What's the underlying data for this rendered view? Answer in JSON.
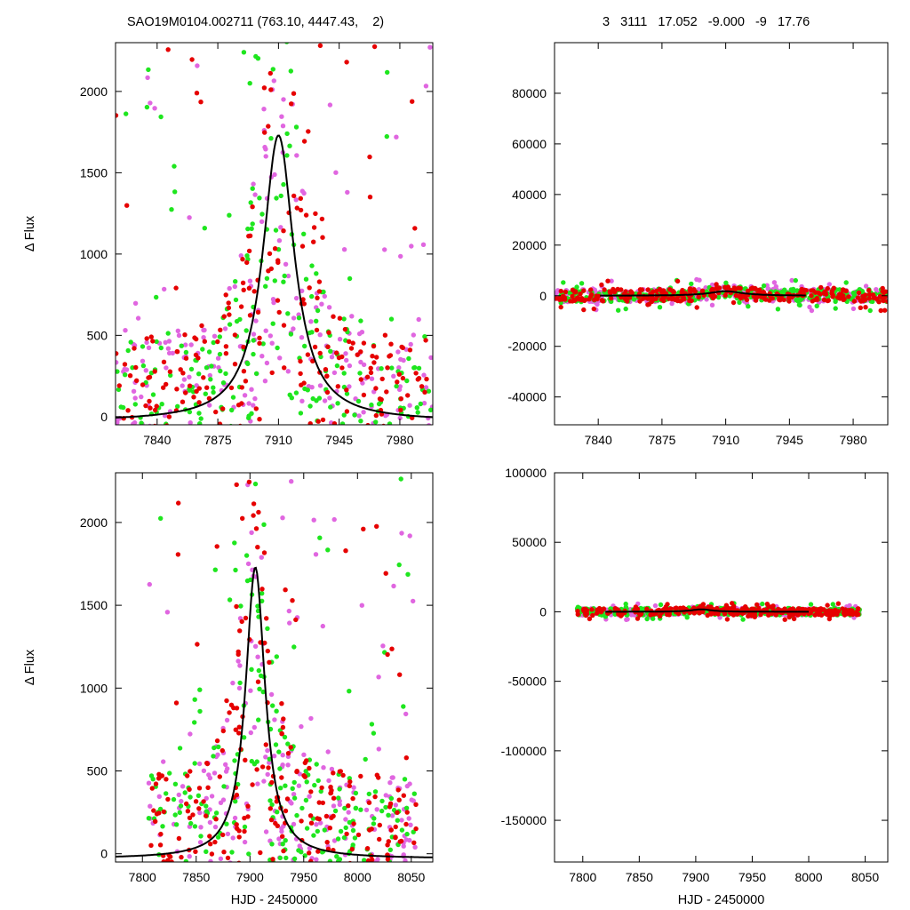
{
  "header": {
    "left_title": "SAO19M0104.002711 (763.10, 4447.43,    2)",
    "right_title": "3   3111   17.052   -9.000   -9   17.76"
  },
  "colors": {
    "red": "#e60000",
    "green": "#1ee61e",
    "magenta": "#e066e0",
    "fit": "#000000"
  },
  "chart_data": [
    {
      "id": "top-left",
      "type": "scatter",
      "xlabel": "",
      "ylabel": "Δ Flux",
      "xlim": [
        7816,
        7999
      ],
      "ylim": [
        -50,
        2300
      ],
      "xticks": [
        7840,
        7875,
        7910,
        7945,
        7980
      ],
      "yticks": [
        0,
        500,
        1000,
        1500,
        2000
      ],
      "model": {
        "t0": 7910,
        "peak": 1760,
        "width": 11
      },
      "points_per_series": 300,
      "point_cloud": {
        "x_range": [
          7816,
          7999
        ],
        "y_range": [
          -50,
          2300
        ]
      }
    },
    {
      "id": "top-right",
      "type": "scatter",
      "xlabel": "",
      "ylabel": "",
      "xlim": [
        7816,
        7999
      ],
      "ylim": [
        -51000,
        100000
      ],
      "xticks": [
        7840,
        7875,
        7910,
        7945,
        7980
      ],
      "yticks": [
        -40000,
        -20000,
        0,
        20000,
        40000,
        60000,
        80000
      ],
      "model": {
        "t0": 7910,
        "peak": 1760,
        "width": 11
      },
      "points_per_series": 300,
      "point_cloud": {
        "x_range": [
          7816,
          7999
        ],
        "y_range": [
          -4000,
          4000
        ]
      }
    },
    {
      "id": "bottom-left",
      "type": "scatter",
      "xlabel": "HJD - 2450000",
      "ylabel": "Δ Flux",
      "xlim": [
        7775,
        8070
      ],
      "ylim": [
        -50,
        2300
      ],
      "xticks": [
        7800,
        7850,
        7900,
        7950,
        8000,
        8050
      ],
      "yticks": [
        0,
        500,
        1000,
        1500,
        2000
      ],
      "model": {
        "t0": 7905,
        "peak": 1760,
        "width": 11
      },
      "points_per_series": 300,
      "point_cloud": {
        "x_range": [
          7805,
          8055
        ],
        "y_range": [
          -50,
          2300
        ]
      }
    },
    {
      "id": "bottom-right",
      "type": "scatter",
      "xlabel": "HJD - 2450000",
      "ylabel": "",
      "xlim": [
        7775,
        8070
      ],
      "ylim": [
        -180000,
        100000
      ],
      "xticks": [
        7800,
        7850,
        7900,
        7950,
        8000,
        8050
      ],
      "yticks": [
        -150000,
        -100000,
        -50000,
        0,
        50000,
        100000
      ],
      "model": {
        "t0": 7905,
        "peak": 1760,
        "width": 11
      },
      "points_per_series": 300,
      "point_cloud": {
        "x_range": [
          7795,
          8045
        ],
        "y_range": [
          -4000,
          4000
        ]
      }
    }
  ]
}
